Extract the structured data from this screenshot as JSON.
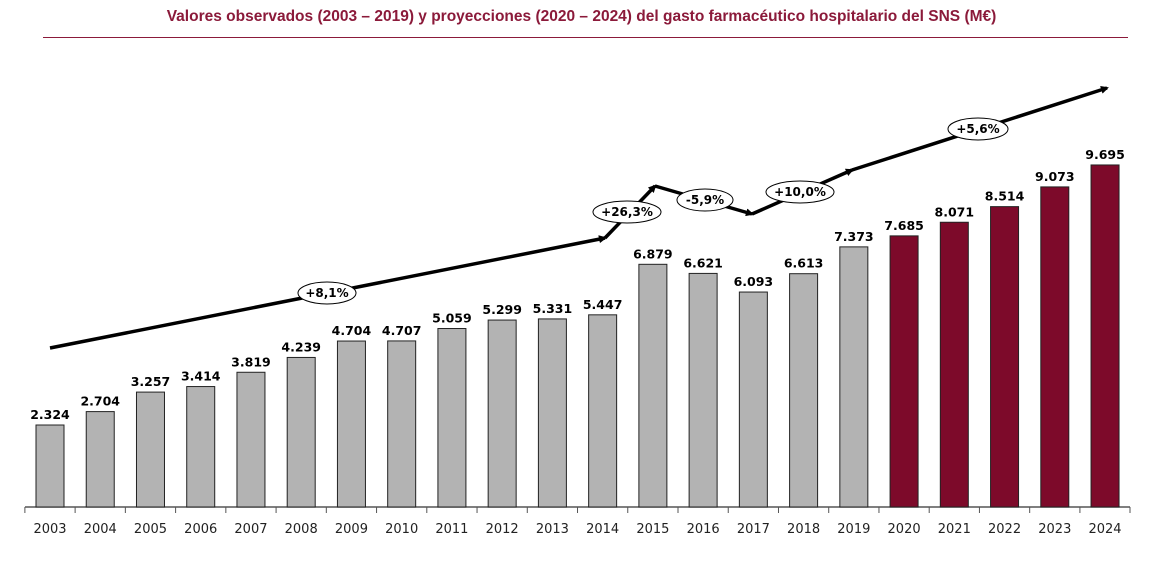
{
  "chart_data": {
    "type": "bar",
    "title": "Valores observados (2003 – 2019) y proyecciones (2020 – 2024) del gasto farmacéutico hospitalario del SNS (M€)",
    "categories": [
      "2003",
      "2004",
      "2005",
      "2006",
      "2007",
      "2008",
      "2009",
      "2010",
      "2011",
      "2012",
      "2013",
      "2014",
      "2015",
      "2016",
      "2017",
      "2018",
      "2019",
      "2020",
      "2021",
      "2022",
      "2023",
      "2024"
    ],
    "values": [
      2324,
      2704,
      3257,
      3414,
      3819,
      4239,
      4704,
      4707,
      5059,
      5299,
      5331,
      5447,
      6879,
      6621,
      6093,
      6613,
      7373,
      7685,
      8071,
      8514,
      9073,
      9695
    ],
    "labels": [
      "2.324",
      "2.704",
      "3.257",
      "3.414",
      "3.819",
      "4.239",
      "4.704",
      "4.707",
      "5.059",
      "5.299",
      "5.331",
      "5.447",
      "6.879",
      "6.621",
      "6.093",
      "6.613",
      "7.373",
      "7.685",
      "8.071",
      "8.514",
      "9.073",
      "9.695"
    ],
    "series_types": [
      "observed",
      "observed",
      "observed",
      "observed",
      "observed",
      "observed",
      "observed",
      "observed",
      "observed",
      "observed",
      "observed",
      "observed",
      "observed",
      "observed",
      "observed",
      "observed",
      "observed",
      "projected",
      "projected",
      "projected",
      "projected",
      "projected"
    ],
    "colors": {
      "observed": "#b3b3b3",
      "projected": "#7d0a2a",
      "title": "#8b1a3a"
    },
    "ylim": [
      0,
      14300
    ],
    "grid": false,
    "annotations": [
      {
        "text": "+8,1%",
        "period": "2003–2014"
      },
      {
        "text": "+26,3%",
        "period": "2014–2015"
      },
      {
        "text": "-5,9%",
        "period": "2015–2017"
      },
      {
        "text": "+10,0%",
        "period": "2017–2019"
      },
      {
        "text": "+5,6%",
        "period": "2019–2024"
      }
    ]
  }
}
